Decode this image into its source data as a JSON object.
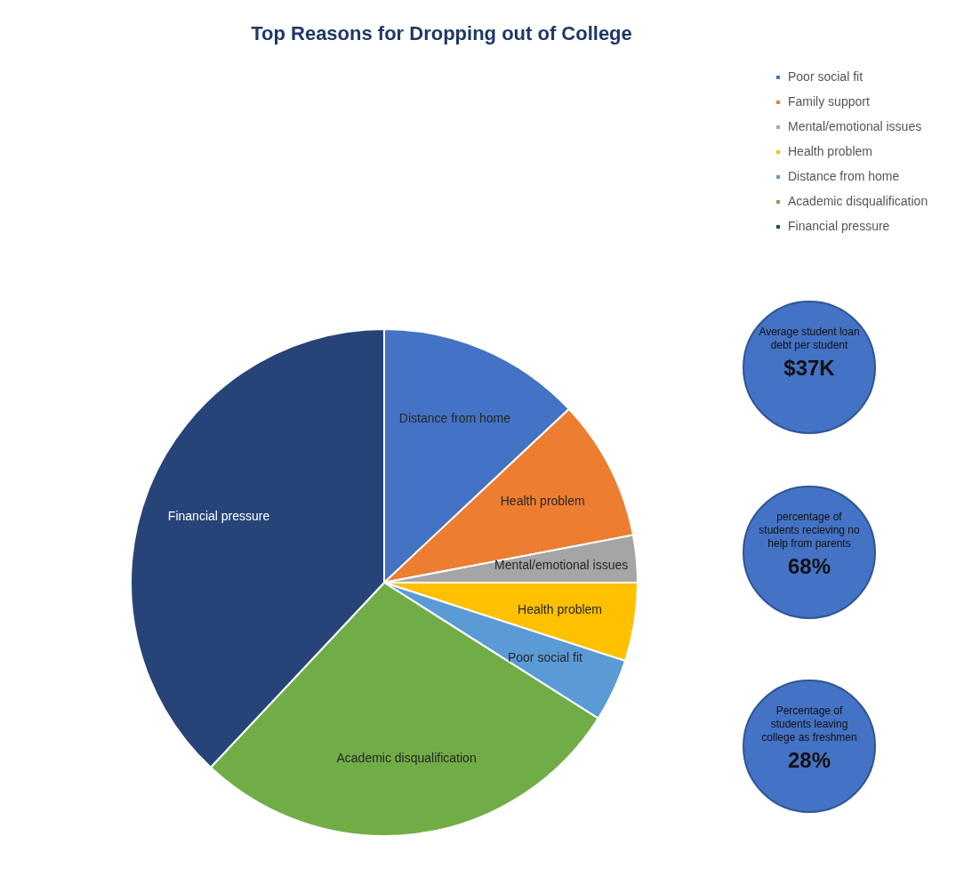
{
  "chart_data": {
    "type": "pie",
    "title": "Top Reasons for Dropping out of College",
    "categories": [
      "Poor social fit",
      "Family support",
      "Mental/emotional issues",
      "Health problem",
      "Distance from home",
      "Academic disqualification",
      "Financial pressure"
    ],
    "values": [
      13,
      9,
      3,
      5,
      4,
      28,
      38
    ],
    "colors": [
      "#4472c4",
      "#ed7d31",
      "#a5a5a5",
      "#ffc000",
      "#5b9bd5",
      "#70ad47",
      "#264478"
    ],
    "value_labels": [
      "Distance from home",
      "Health problem",
      "Mental/emotional issues",
      "Health problem",
      "Poor social fit",
      "Academic disqualification",
      "Financial pressure"
    ],
    "legend": "top right",
    "annotations": [
      "Average student loan debt per student",
      "$37K",
      "percentage of students recieving no help from parents",
      "68%",
      "Percentage of students leaving college as freshmen",
      "28%"
    ]
  }
}
